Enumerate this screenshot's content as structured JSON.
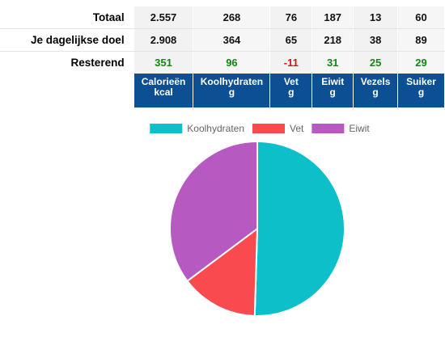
{
  "table": {
    "rows": [
      {
        "label": "Totaal",
        "values": [
          "2.557",
          "268",
          "76",
          "187",
          "13",
          "60"
        ]
      },
      {
        "label": "Je dagelijkse doel",
        "values": [
          "2.908",
          "364",
          "65",
          "218",
          "38",
          "89"
        ]
      },
      {
        "label": "Resterend",
        "values": [
          "351",
          "96",
          "-11",
          "31",
          "25",
          "29"
        ],
        "value_status": [
          "positive",
          "positive",
          "negative",
          "positive",
          "positive",
          "positive"
        ]
      }
    ],
    "columns": [
      {
        "name": "Calorieën",
        "unit": "kcal"
      },
      {
        "name": "Koolhydraten",
        "unit": "g"
      },
      {
        "name": "Vet",
        "unit": "g"
      },
      {
        "name": "Eiwit",
        "unit": "g"
      },
      {
        "name": "Vezels",
        "unit": "g"
      },
      {
        "name": "Suiker",
        "unit": "g"
      }
    ],
    "colors": {
      "header_bg": "#0c4f93",
      "positive": "#118811",
      "negative": "#dd1111"
    }
  },
  "chart_data": {
    "type": "pie",
    "categories": [
      "Koolhydraten",
      "Vet",
      "Eiwit"
    ],
    "values": [
      268,
      76,
      187
    ],
    "colors": [
      "#0cbfc9",
      "#f94b4f",
      "#b65ac2"
    ],
    "legend": {
      "position": "top",
      "entries": [
        "Koolhydraten",
        "Vet",
        "Eiwit"
      ]
    },
    "title": ""
  }
}
